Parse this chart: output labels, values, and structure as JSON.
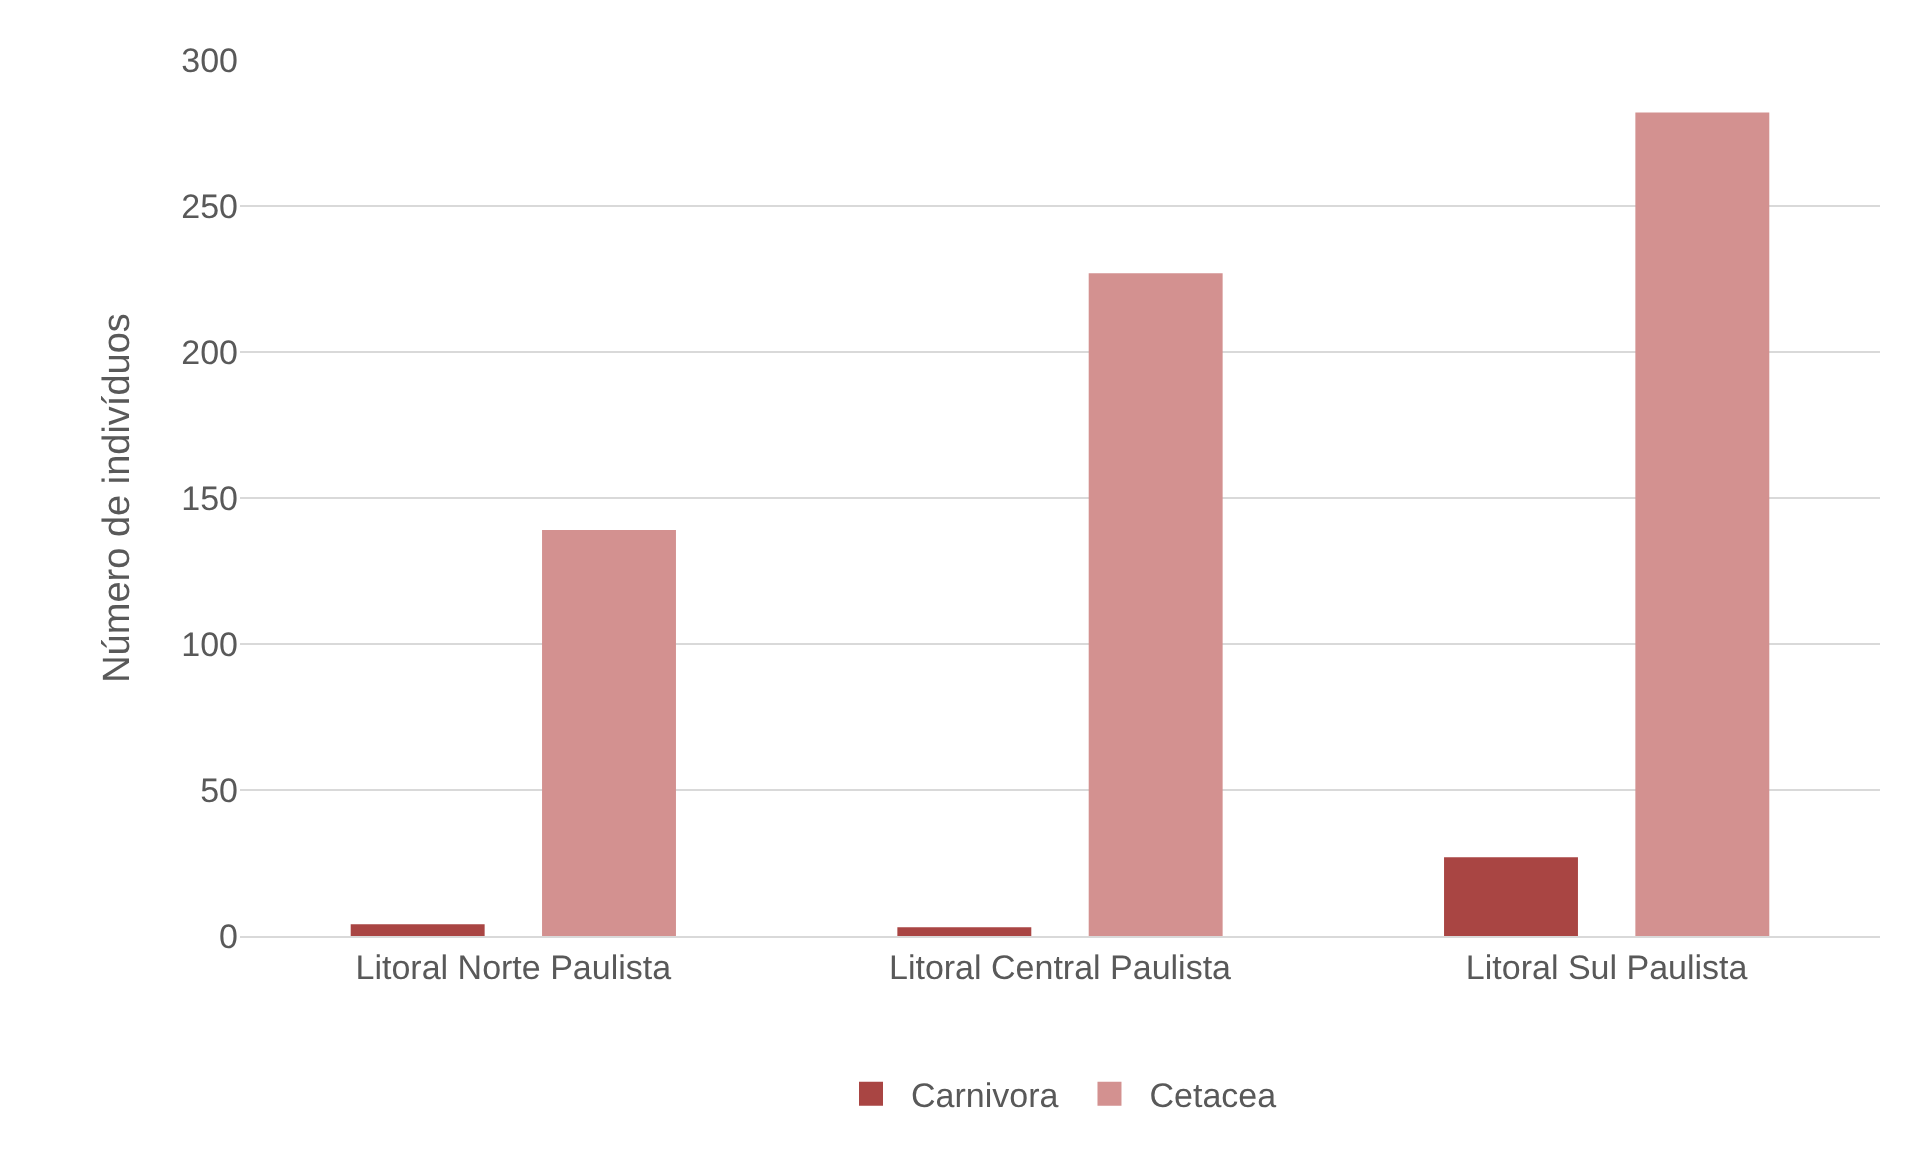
{
  "chart_data": {
    "type": "bar",
    "ylabel": "Número de indivíduos",
    "categories": [
      "Litoral Norte Paulista",
      "Litoral Central Paulista",
      "Litoral Sul Paulista"
    ],
    "series": [
      {
        "name": "Carnivora",
        "color": "#a94543",
        "values": [
          4,
          3,
          27
        ]
      },
      {
        "name": "Cetacea",
        "color": "#d39190",
        "values": [
          139,
          227,
          282
        ]
      }
    ],
    "ylim": [
      0,
      300
    ],
    "yticks": [
      0,
      50,
      100,
      150,
      200,
      250,
      300
    ],
    "grid": "y",
    "legend": "bottom"
  }
}
